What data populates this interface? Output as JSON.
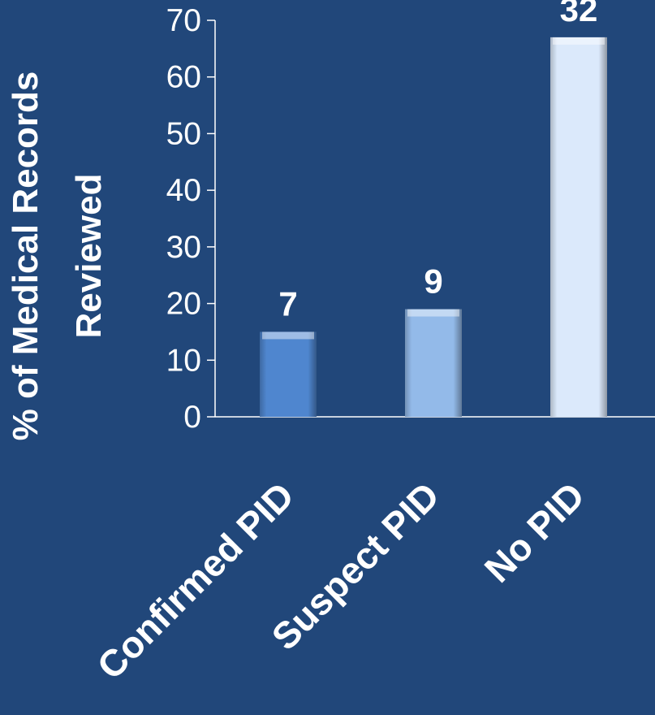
{
  "chart_data": {
    "type": "bar",
    "categories": [
      "Confirmed PID",
      "Suspect PID",
      "No PID"
    ],
    "values": [
      15,
      19,
      67
    ],
    "data_labels": [
      "7",
      "9",
      "32"
    ],
    "title": "",
    "xlabel": "",
    "ylabel": "% of Medical Records Reviewed",
    "ylabel_lines": [
      "% of Medical Records",
      "Reviewed"
    ],
    "ylim": [
      0,
      70
    ],
    "yticks": [
      0,
      10,
      20,
      30,
      40,
      50,
      60,
      70
    ],
    "grid": false,
    "legend": "none",
    "colors": {
      "background": "#21477a",
      "bars": [
        "#4f86cf",
        "#93bae9",
        "#dbe9fb"
      ],
      "axis": "#ffffff",
      "text": "#ffffff"
    }
  }
}
